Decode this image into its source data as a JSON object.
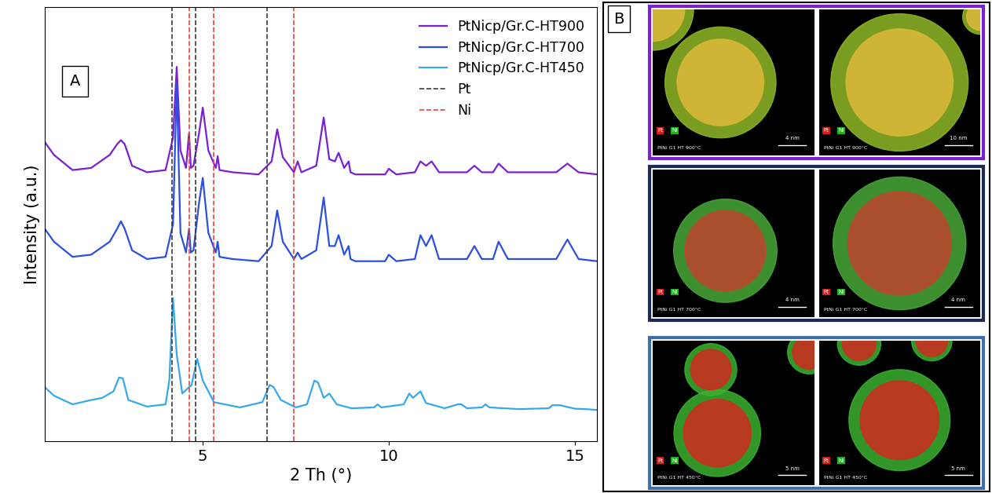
{
  "chart_data": {
    "type": "line",
    "x_label": "2 Th (°)",
    "y_label": "Intensity (a.u.)",
    "annotations": [
      "A"
    ],
    "xlim": [
      0.75,
      15.6
    ],
    "xticks": [
      5,
      10,
      15
    ],
    "ylim": [
      0,
      100
    ],
    "yticks": [],
    "tick_labels": "x",
    "grid": false,
    "legend": "upper right",
    "series": [
      {
        "name": "PtNicp/Gr.C-HT900",
        "color": "#7b1fd3",
        "line_style": "solid",
        "x": [
          0.75,
          1.0,
          1.5,
          2.0,
          2.5,
          2.7,
          2.8,
          2.9,
          3.1,
          3.5,
          4.0,
          4.2,
          4.3,
          4.4,
          4.55,
          4.63,
          4.68,
          4.75,
          4.9,
          5.0,
          5.15,
          5.35,
          5.4,
          5.45,
          5.8,
          6.5,
          6.85,
          7.0,
          7.15,
          7.45,
          7.55,
          7.65,
          8.05,
          8.25,
          8.4,
          8.55,
          8.65,
          8.8,
          8.92,
          8.97,
          9.1,
          9.9,
          10.0,
          10.2,
          10.7,
          10.85,
          11.0,
          11.15,
          11.35,
          12.1,
          12.3,
          12.5,
          12.8,
          12.95,
          13.2,
          14.5,
          14.8,
          15.1,
          15.6
        ],
        "values": [
          69,
          66,
          62.5,
          63,
          66,
          68.5,
          69.4,
          68.5,
          63.5,
          62,
          62.5,
          70,
          86.3,
          67,
          63,
          71,
          63,
          63.5,
          71,
          76.9,
          67,
          63,
          65.7,
          62.5,
          62,
          61.5,
          64.5,
          71.9,
          65.5,
          62,
          64.5,
          62,
          63.5,
          74.6,
          65,
          64.5,
          66.5,
          63,
          64.5,
          62,
          61.5,
          61.5,
          62.8,
          61.5,
          62,
          64.5,
          63.5,
          64.5,
          62,
          62,
          63.5,
          62,
          62,
          64,
          62,
          62,
          64,
          62,
          61.5
        ]
      },
      {
        "name": "PtNicp/Gr.C-HT700",
        "color": "#2b4fe0",
        "line_style": "solid",
        "x": [
          0.75,
          1.0,
          1.5,
          2.0,
          2.5,
          2.7,
          2.8,
          2.9,
          3.1,
          3.5,
          4.0,
          4.2,
          4.3,
          4.4,
          4.55,
          4.63,
          4.68,
          4.75,
          4.9,
          5.0,
          5.15,
          5.35,
          5.4,
          5.45,
          5.8,
          6.5,
          6.85,
          7.0,
          7.15,
          7.45,
          7.55,
          7.65,
          8.05,
          8.25,
          8.4,
          8.55,
          8.65,
          8.8,
          8.92,
          8.97,
          9.1,
          9.9,
          10.0,
          10.2,
          10.7,
          10.85,
          11.0,
          11.15,
          11.35,
          12.1,
          12.3,
          12.5,
          12.8,
          12.95,
          13.2,
          14.5,
          14.8,
          15.1,
          15.6
        ],
        "values": [
          49,
          46,
          42.5,
          43,
          46,
          49,
          50.7,
          49,
          44,
          42,
          42.5,
          50,
          82.4,
          48,
          43.5,
          49,
          43.5,
          44,
          55,
          60.7,
          48,
          43.5,
          46,
          42.5,
          42,
          41.5,
          45,
          53.2,
          46,
          42,
          43.5,
          42,
          44,
          56.2,
          45,
          45,
          47.5,
          43,
          45,
          42,
          41.5,
          41.5,
          43,
          41.5,
          42,
          47.5,
          45,
          47.5,
          42,
          42,
          45,
          42,
          42,
          46,
          42,
          42,
          46.5,
          42,
          41.5
        ]
      },
      {
        "name": "PtNicp/Gr.C-HT450",
        "color": "#35a9ea",
        "line_style": "solid",
        "x": [
          0.75,
          1.0,
          1.5,
          2.0,
          2.3,
          2.6,
          2.75,
          2.85,
          3.0,
          3.5,
          4.0,
          4.1,
          4.2,
          4.3,
          4.45,
          4.7,
          4.85,
          5.0,
          5.3,
          6.0,
          6.6,
          6.8,
          6.9,
          7.1,
          7.5,
          7.8,
          8.0,
          8.1,
          8.25,
          8.4,
          8.6,
          9.0,
          9.6,
          9.7,
          9.8,
          10.4,
          10.55,
          10.65,
          10.85,
          11.0,
          11.5,
          11.85,
          11.95,
          12.1,
          12.5,
          12.6,
          12.7,
          13.5,
          14.3,
          14.4,
          14.6,
          15.0,
          15.3,
          15.6
        ],
        "values": [
          12.5,
          10.5,
          8.5,
          9.5,
          10,
          11.5,
          14.7,
          14.5,
          9.5,
          8.0,
          8.5,
          14,
          33,
          20,
          11,
          13,
          19,
          14,
          9,
          7.8,
          9,
          13,
          12.5,
          9.5,
          7.8,
          8.5,
          14,
          13.5,
          10,
          11,
          8.5,
          7.6,
          7.8,
          8.5,
          7.8,
          8.5,
          11,
          10,
          11.5,
          8.8,
          7.6,
          8.5,
          8.5,
          7.6,
          7.8,
          8.5,
          7.8,
          7.4,
          7.6,
          8.3,
          8.3,
          7.5,
          7.4,
          7.2
        ]
      },
      {
        "name": "Pt",
        "type": "vline",
        "color": "#3c3c3c",
        "line_style": "dashed",
        "x": [
          4.18,
          4.81,
          6.73
        ]
      },
      {
        "name": "Ni",
        "type": "vline",
        "color": "#e8473f",
        "line_style": "dashed",
        "x": [
          4.64,
          5.3,
          7.45
        ]
      }
    ]
  },
  "panel_b": {
    "label": "B",
    "legend": [
      "Pt",
      "Ni"
    ],
    "rows": [
      {
        "frame_color": "#7b1fd3",
        "images": [
          {
            "caption": "PtNi G1 HT 900°C",
            "scale_bar": "4 nm"
          },
          {
            "caption": "PtNi G1 HT 900°C",
            "scale_bar": "10 nm"
          }
        ]
      },
      {
        "frame_color": "#1c2a52",
        "images": [
          {
            "caption": "PtNi G1 HT 700°C",
            "scale_bar": "4 nm"
          },
          {
            "caption": "PtNi G1 HT 700°C",
            "scale_bar": "4 nm"
          }
        ]
      },
      {
        "frame_color": "#3f6fa8",
        "images": [
          {
            "caption": "PtNi G1 HT 450°C",
            "scale_bar": "5 nm"
          },
          {
            "caption": "PtNi G1 HT 450°C",
            "scale_bar": "5 nm"
          }
        ]
      }
    ]
  }
}
